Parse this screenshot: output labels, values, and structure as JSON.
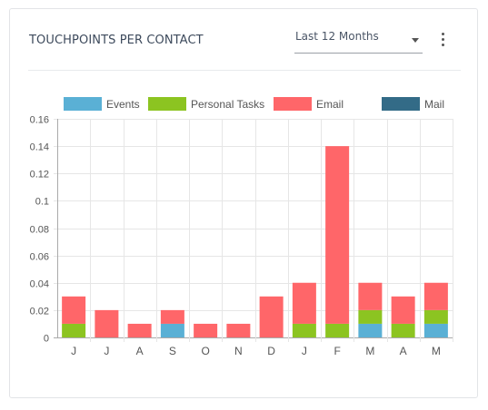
{
  "card": {
    "title": "TOUCHPOINTS PER CONTACT",
    "range_selected": "Last 12 Months"
  },
  "icons": {
    "caret": "chevron-down-icon",
    "menu": "more-vert-icon"
  },
  "chart_data": {
    "type": "bar",
    "stacked": true,
    "categories": [
      "J",
      "J",
      "A",
      "S",
      "O",
      "N",
      "D",
      "J",
      "F",
      "M",
      "A",
      "M"
    ],
    "series": [
      {
        "name": "Events",
        "color": "#5ab0d5",
        "values": [
          0,
          0,
          0,
          0.01,
          0,
          0,
          0,
          0,
          0,
          0.01,
          0,
          0.01
        ]
      },
      {
        "name": "Personal Tasks",
        "color": "#8cc421",
        "values": [
          0.01,
          0,
          0,
          0,
          0,
          0,
          0,
          0.01,
          0.01,
          0.01,
          0.01,
          0.01
        ]
      },
      {
        "name": "Email",
        "color": "#ff6669",
        "values": [
          0.02,
          0.02,
          0.01,
          0.01,
          0.01,
          0.01,
          0.03,
          0.03,
          0.13,
          0.02,
          0.02,
          0.02
        ]
      },
      {
        "name": "Mail",
        "color": "#336b87",
        "values": [
          0,
          0,
          0,
          0,
          0,
          0,
          0,
          0,
          0,
          0,
          0,
          0
        ]
      }
    ],
    "yticks": [
      "0",
      "0.02",
      "0.04",
      "0.06",
      "0.08",
      "0.1",
      "0.12",
      "0.14",
      "0.16"
    ],
    "ylim": [
      0,
      0.16
    ],
    "grid": true,
    "legend": "top"
  }
}
